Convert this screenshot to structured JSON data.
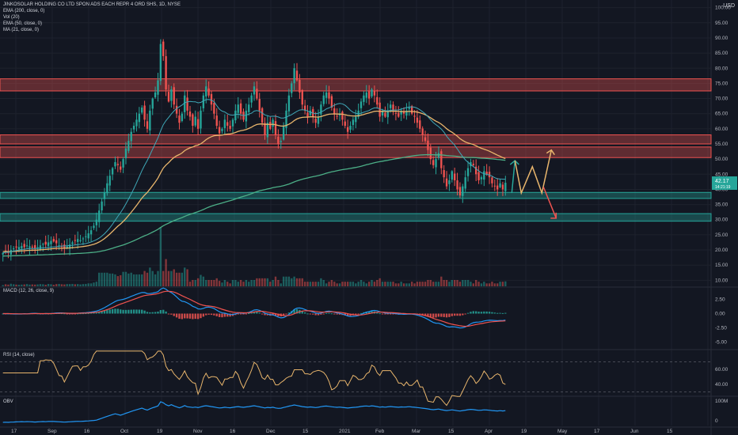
{
  "header": {
    "symbol_line": "JINKOSOLAR HOLDING CO LTD SPON ADS EACH REPR 4 ORD SHS, 1D, NYSE",
    "indicators": [
      "EMA (200, close, 0)",
      "Vol (20)",
      "EMA (50, close, 0)",
      "MA (21, close, 0)"
    ],
    "currency": "USD"
  },
  "price_badges": {
    "last": "42.17",
    "sub": "14:21:19"
  },
  "panes": {
    "macd_label": "MACD (12, 26, close, 9)",
    "rsi_label": "RSI (14, close)",
    "obv_label": "OBV"
  },
  "colors": {
    "background": "#131722",
    "grid": "#1e222d",
    "up": "#26a69a",
    "down": "#ef5350",
    "ema200": "#4caf87",
    "ema50": "#e8b56c",
    "ma21": "#3fa8b8",
    "macd": "#2196f3",
    "signal": "#ef5350",
    "rsi": "#e8b56c",
    "obv": "#2196f3",
    "arrow_green": "#26a69a",
    "arrow_yellow": "#e8b56c",
    "arrow_red": "#ef5350",
    "badge": "#26a69a"
  },
  "chart_data": {
    "type": "candlestick",
    "x_ticks": [
      "17",
      "Sep",
      "16",
      "Oct",
      "19",
      "Nov",
      "16",
      "Dec",
      "15",
      "2021",
      "Feb",
      "Mar",
      "15",
      "Apr",
      "19",
      "May",
      "17",
      "Jun",
      "15"
    ],
    "price_axis": {
      "ticks": [
        "100.00",
        "95.00",
        "90.00",
        "85.00",
        "80.00",
        "75.00",
        "70.00",
        "65.00",
        "60.00",
        "55.00",
        "50.00",
        "45.00",
        "40.00",
        "35.00",
        "30.00",
        "25.00",
        "20.00",
        "15.00",
        "10.00"
      ],
      "range": [
        8,
        102
      ]
    },
    "macd_axis": {
      "ticks": [
        "2.50",
        "0.00",
        "-2.50",
        "-5.00"
      ]
    },
    "rsi_axis": {
      "ticks": [
        "60.00",
        "40.00"
      ]
    },
    "obv_axis": {
      "ticks": [
        "100M",
        "0"
      ]
    },
    "zones": [
      {
        "low": 72.5,
        "high": 76.5,
        "color": "red"
      },
      {
        "low": 55,
        "high": 58,
        "color": "red"
      },
      {
        "low": 50.5,
        "high": 54,
        "color": "red"
      },
      {
        "low": 37,
        "high": 39,
        "color": "green"
      },
      {
        "low": 29.5,
        "high": 32,
        "color": "green"
      }
    ],
    "close_series": [
      19,
      19.5,
      19.2,
      20,
      20.5,
      20.8,
      21,
      21.3,
      20.9,
      21.5,
      21.2,
      20.8,
      20.5,
      20.9,
      21.5,
      22,
      21.8,
      22.5,
      23,
      22.8,
      22.2,
      21.5,
      21,
      20.6,
      21.2,
      21.8,
      22.5,
      23,
      23.6,
      23.2,
      23.8,
      24.5,
      25.5,
      26.5,
      28,
      30,
      33,
      36,
      39,
      42,
      44.5,
      47,
      49,
      48,
      46.5,
      50,
      53.5,
      56,
      59,
      61,
      63,
      65,
      67,
      63,
      60,
      66,
      70,
      72,
      76,
      88,
      84,
      73,
      69,
      73,
      68,
      65,
      62,
      65,
      71,
      66,
      64,
      61,
      64,
      60,
      66,
      71,
      74,
      71,
      68,
      65,
      61,
      58.5,
      60,
      63,
      61,
      60,
      63,
      66,
      68,
      65,
      63,
      66,
      68,
      71,
      74,
      70,
      66,
      62,
      58,
      62,
      60,
      63,
      58,
      55,
      56,
      61,
      66,
      71,
      75,
      80,
      76,
      72,
      68,
      66,
      64,
      66,
      64,
      62,
      64,
      68,
      71,
      72,
      70,
      67,
      65,
      64,
      65,
      63,
      61,
      59,
      61,
      63,
      64,
      66,
      69,
      71,
      72,
      70,
      73,
      71,
      68,
      64,
      66,
      64,
      66,
      68,
      66,
      65,
      64,
      66,
      65,
      66,
      67,
      65,
      64,
      62,
      60,
      58,
      56,
      53,
      50,
      48,
      50,
      52,
      47,
      44,
      41,
      43,
      46,
      43,
      40,
      38,
      41,
      44,
      47,
      49,
      48,
      45,
      43,
      44,
      46,
      45,
      44,
      42,
      41,
      40,
      42,
      40,
      42.2
    ],
    "ema200_series_start": 18,
    "ema50_series_start": 19.5,
    "ma21_series_start": 19.2,
    "projection": {
      "green_top": 49.5,
      "yellow_top": 53,
      "red_end": 30.5,
      "zig_bottom": 38.8
    }
  }
}
